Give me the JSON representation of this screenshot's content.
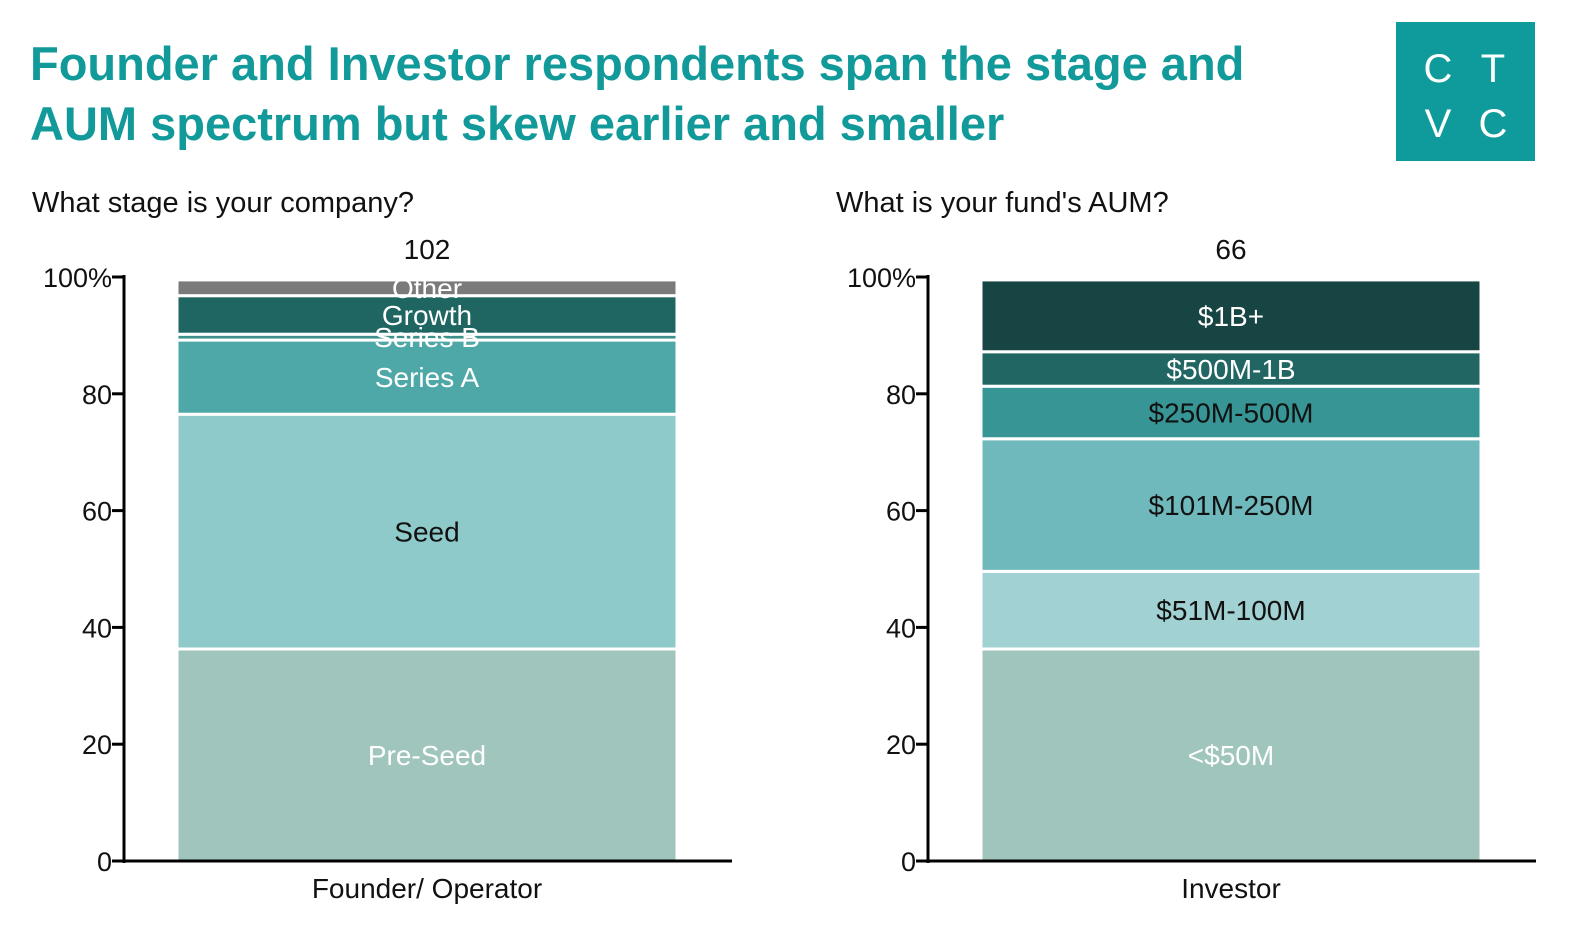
{
  "title": "Founder and Investor respondents span the stage and AUM spectrum but skew earlier and smaller",
  "logo": {
    "letters": [
      "C",
      "T",
      "V",
      "C"
    ],
    "color": "#0f9b9b"
  },
  "chart_data": [
    {
      "type": "bar",
      "stacked": true,
      "question": "What stage is your company?",
      "categories": [
        "Founder/ Operator"
      ],
      "respondents": "102",
      "ylim": [
        0,
        100
      ],
      "yticks": [
        "0",
        "20",
        "40",
        "60",
        "80",
        "100%"
      ],
      "series": [
        {
          "name": "Pre-Seed",
          "values": [
            36.3
          ],
          "color": "#9fc5bd",
          "label_color": "#ffffff"
        },
        {
          "name": "Seed",
          "values": [
            40.2
          ],
          "color": "#8fcaca",
          "label_color": "#111111"
        },
        {
          "name": "Series A",
          "values": [
            12.7
          ],
          "color": "#4fa8a8",
          "label_color": "#ffffff"
        },
        {
          "name": "Series B",
          "values": [
            1.0
          ],
          "color": "#3d8f8a",
          "label_color": "#ffffff"
        },
        {
          "name": "Growth",
          "values": [
            6.6
          ],
          "color": "#1f6663",
          "label_color": "#ffffff"
        },
        {
          "name": "Other",
          "values": [
            2.7
          ],
          "color": "#7a7a7a",
          "label_color": "#ffffff"
        }
      ]
    },
    {
      "type": "bar",
      "stacked": true,
      "question": "What is your fund's AUM?",
      "categories": [
        "Investor"
      ],
      "respondents": "66",
      "ylim": [
        0,
        100
      ],
      "yticks": [
        "0",
        "20",
        "40",
        "60",
        "80",
        "100%"
      ],
      "series": [
        {
          "name": "<$50M",
          "values": [
            36.3
          ],
          "color": "#9fc5bd",
          "label_color": "#ffffff"
        },
        {
          "name": "$51M-100M",
          "values": [
            13.3
          ],
          "color": "#a1d1d2",
          "label_color": "#111111"
        },
        {
          "name": "$101M-250M",
          "values": [
            22.7
          ],
          "color": "#6fb9bc",
          "label_color": "#111111"
        },
        {
          "name": "$250M-500M",
          "values": [
            9.0
          ],
          "color": "#389595",
          "label_color": "#111111"
        },
        {
          "name": "$500M-1B",
          "values": [
            5.9
          ],
          "color": "#216663",
          "label_color": "#ffffff"
        },
        {
          "name": "$1B+",
          "values": [
            12.3
          ],
          "color": "#164544",
          "label_color": "#ffffff"
        }
      ]
    }
  ]
}
